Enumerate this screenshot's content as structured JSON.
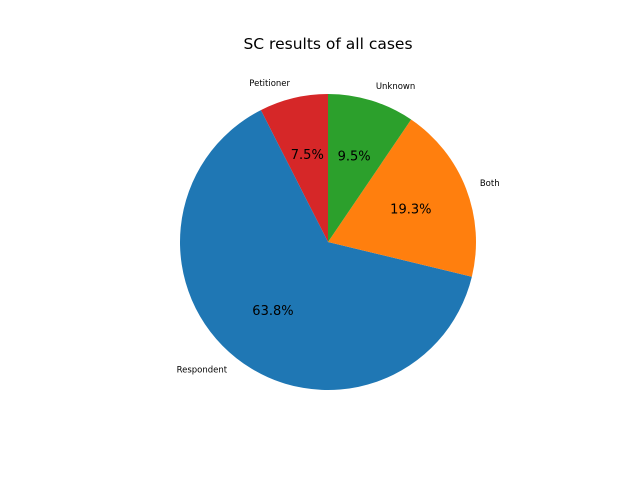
{
  "chart_data": {
    "type": "pie",
    "title": "SC results of all cases",
    "slices": [
      {
        "label": "Petitioner",
        "value": 7.5,
        "pct_label": "7.5%",
        "color": "#d62728"
      },
      {
        "label": "Respondent",
        "value": 63.8,
        "pct_label": "63.8%",
        "color": "#1f77b4"
      },
      {
        "label": "Both",
        "value": 19.3,
        "pct_label": "19.3%",
        "color": "#ff7f0e"
      },
      {
        "label": "Unknown",
        "value": 9.5,
        "pct_label": "9.5%",
        "color": "#2ca02c"
      }
    ],
    "start_angle_deg": 90,
    "direction": "counterclockwise",
    "legend": "none"
  }
}
